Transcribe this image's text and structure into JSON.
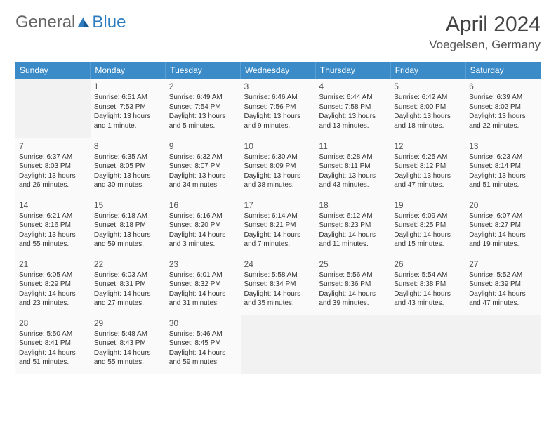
{
  "logo": {
    "text1": "General",
    "text2": "Blue"
  },
  "title": "April 2024",
  "location": "Voegelsen, Germany",
  "colors": {
    "header_bg": "#3b8bc9",
    "header_text": "#ffffff",
    "row_border": "#2a6fa8",
    "cell_bg": "#fafafa",
    "empty_bg": "#f2f2f2"
  },
  "weekdays": [
    "Sunday",
    "Monday",
    "Tuesday",
    "Wednesday",
    "Thursday",
    "Friday",
    "Saturday"
  ],
  "cells": [
    [
      null,
      {
        "n": "1",
        "sr": "Sunrise: 6:51 AM",
        "ss": "Sunset: 7:53 PM",
        "d1": "Daylight: 13 hours",
        "d2": "and 1 minute."
      },
      {
        "n": "2",
        "sr": "Sunrise: 6:49 AM",
        "ss": "Sunset: 7:54 PM",
        "d1": "Daylight: 13 hours",
        "d2": "and 5 minutes."
      },
      {
        "n": "3",
        "sr": "Sunrise: 6:46 AM",
        "ss": "Sunset: 7:56 PM",
        "d1": "Daylight: 13 hours",
        "d2": "and 9 minutes."
      },
      {
        "n": "4",
        "sr": "Sunrise: 6:44 AM",
        "ss": "Sunset: 7:58 PM",
        "d1": "Daylight: 13 hours",
        "d2": "and 13 minutes."
      },
      {
        "n": "5",
        "sr": "Sunrise: 6:42 AM",
        "ss": "Sunset: 8:00 PM",
        "d1": "Daylight: 13 hours",
        "d2": "and 18 minutes."
      },
      {
        "n": "6",
        "sr": "Sunrise: 6:39 AM",
        "ss": "Sunset: 8:02 PM",
        "d1": "Daylight: 13 hours",
        "d2": "and 22 minutes."
      }
    ],
    [
      {
        "n": "7",
        "sr": "Sunrise: 6:37 AM",
        "ss": "Sunset: 8:03 PM",
        "d1": "Daylight: 13 hours",
        "d2": "and 26 minutes."
      },
      {
        "n": "8",
        "sr": "Sunrise: 6:35 AM",
        "ss": "Sunset: 8:05 PM",
        "d1": "Daylight: 13 hours",
        "d2": "and 30 minutes."
      },
      {
        "n": "9",
        "sr": "Sunrise: 6:32 AM",
        "ss": "Sunset: 8:07 PM",
        "d1": "Daylight: 13 hours",
        "d2": "and 34 minutes."
      },
      {
        "n": "10",
        "sr": "Sunrise: 6:30 AM",
        "ss": "Sunset: 8:09 PM",
        "d1": "Daylight: 13 hours",
        "d2": "and 38 minutes."
      },
      {
        "n": "11",
        "sr": "Sunrise: 6:28 AM",
        "ss": "Sunset: 8:11 PM",
        "d1": "Daylight: 13 hours",
        "d2": "and 43 minutes."
      },
      {
        "n": "12",
        "sr": "Sunrise: 6:25 AM",
        "ss": "Sunset: 8:12 PM",
        "d1": "Daylight: 13 hours",
        "d2": "and 47 minutes."
      },
      {
        "n": "13",
        "sr": "Sunrise: 6:23 AM",
        "ss": "Sunset: 8:14 PM",
        "d1": "Daylight: 13 hours",
        "d2": "and 51 minutes."
      }
    ],
    [
      {
        "n": "14",
        "sr": "Sunrise: 6:21 AM",
        "ss": "Sunset: 8:16 PM",
        "d1": "Daylight: 13 hours",
        "d2": "and 55 minutes."
      },
      {
        "n": "15",
        "sr": "Sunrise: 6:18 AM",
        "ss": "Sunset: 8:18 PM",
        "d1": "Daylight: 13 hours",
        "d2": "and 59 minutes."
      },
      {
        "n": "16",
        "sr": "Sunrise: 6:16 AM",
        "ss": "Sunset: 8:20 PM",
        "d1": "Daylight: 14 hours",
        "d2": "and 3 minutes."
      },
      {
        "n": "17",
        "sr": "Sunrise: 6:14 AM",
        "ss": "Sunset: 8:21 PM",
        "d1": "Daylight: 14 hours",
        "d2": "and 7 minutes."
      },
      {
        "n": "18",
        "sr": "Sunrise: 6:12 AM",
        "ss": "Sunset: 8:23 PM",
        "d1": "Daylight: 14 hours",
        "d2": "and 11 minutes."
      },
      {
        "n": "19",
        "sr": "Sunrise: 6:09 AM",
        "ss": "Sunset: 8:25 PM",
        "d1": "Daylight: 14 hours",
        "d2": "and 15 minutes."
      },
      {
        "n": "20",
        "sr": "Sunrise: 6:07 AM",
        "ss": "Sunset: 8:27 PM",
        "d1": "Daylight: 14 hours",
        "d2": "and 19 minutes."
      }
    ],
    [
      {
        "n": "21",
        "sr": "Sunrise: 6:05 AM",
        "ss": "Sunset: 8:29 PM",
        "d1": "Daylight: 14 hours",
        "d2": "and 23 minutes."
      },
      {
        "n": "22",
        "sr": "Sunrise: 6:03 AM",
        "ss": "Sunset: 8:31 PM",
        "d1": "Daylight: 14 hours",
        "d2": "and 27 minutes."
      },
      {
        "n": "23",
        "sr": "Sunrise: 6:01 AM",
        "ss": "Sunset: 8:32 PM",
        "d1": "Daylight: 14 hours",
        "d2": "and 31 minutes."
      },
      {
        "n": "24",
        "sr": "Sunrise: 5:58 AM",
        "ss": "Sunset: 8:34 PM",
        "d1": "Daylight: 14 hours",
        "d2": "and 35 minutes."
      },
      {
        "n": "25",
        "sr": "Sunrise: 5:56 AM",
        "ss": "Sunset: 8:36 PM",
        "d1": "Daylight: 14 hours",
        "d2": "and 39 minutes."
      },
      {
        "n": "26",
        "sr": "Sunrise: 5:54 AM",
        "ss": "Sunset: 8:38 PM",
        "d1": "Daylight: 14 hours",
        "d2": "and 43 minutes."
      },
      {
        "n": "27",
        "sr": "Sunrise: 5:52 AM",
        "ss": "Sunset: 8:39 PM",
        "d1": "Daylight: 14 hours",
        "d2": "and 47 minutes."
      }
    ],
    [
      {
        "n": "28",
        "sr": "Sunrise: 5:50 AM",
        "ss": "Sunset: 8:41 PM",
        "d1": "Daylight: 14 hours",
        "d2": "and 51 minutes."
      },
      {
        "n": "29",
        "sr": "Sunrise: 5:48 AM",
        "ss": "Sunset: 8:43 PM",
        "d1": "Daylight: 14 hours",
        "d2": "and 55 minutes."
      },
      {
        "n": "30",
        "sr": "Sunrise: 5:46 AM",
        "ss": "Sunset: 8:45 PM",
        "d1": "Daylight: 14 hours",
        "d2": "and 59 minutes."
      },
      null,
      null,
      null,
      null
    ]
  ]
}
